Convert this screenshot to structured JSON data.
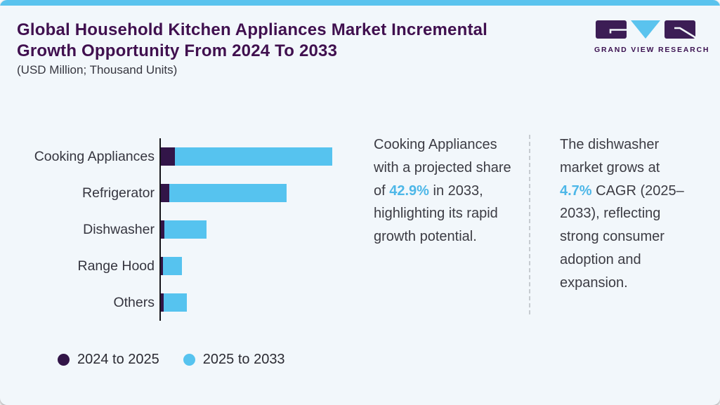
{
  "colors": {
    "background": "#f2f7fb",
    "top_strip": "#5ac3ee",
    "title_purple": "#40104f",
    "series_dark_purple": "#321548",
    "series_light_blue": "#56c3ef",
    "highlight_blue": "#4db7e8",
    "axis": "#15151a",
    "divider_gray": "#c7ccd1"
  },
  "header": {
    "title_lines": [
      "Global Household Kitchen Appliances Market Incremental",
      "Growth Opportunity From 2024 To 2033"
    ],
    "subtitle": "(USD Million; Thousand Units)"
  },
  "logo": {
    "text": "GRAND VIEW RESEARCH"
  },
  "chart_data": {
    "type": "bar",
    "orientation": "horizontal",
    "stacked": true,
    "categories": [
      "Cooking Appliances",
      "Refrigerator",
      "Dishwasher",
      "Range Hood",
      "Others"
    ],
    "series": [
      {
        "name": "2024 to 2025",
        "color": "#321548",
        "values": [
          20,
          12,
          5,
          3,
          4
        ]
      },
      {
        "name": "2025 to 2033",
        "color": "#56c3ef",
        "values": [
          224,
          167,
          60,
          27,
          33
        ]
      }
    ],
    "value_axis_note": "no numeric axis shown; values are relative units (USD Million; Thousand Units)",
    "grid": false,
    "legend_position": "bottom-left"
  },
  "legend": [
    {
      "label": "2024 to 2025",
      "color": "#321548"
    },
    {
      "label": "2025 to 2033",
      "color": "#56c3ef"
    }
  ],
  "insights": [
    {
      "before": "Cooking Appliances with a projected share of ",
      "highlight": "42.9%",
      "after": " in 2033, highlighting its rapid growth potential."
    },
    {
      "before": "The dishwasher market grows at ",
      "highlight": "4.7%",
      "after": " CAGR (2025–2033), reflecting strong consumer adoption and expansion."
    }
  ]
}
